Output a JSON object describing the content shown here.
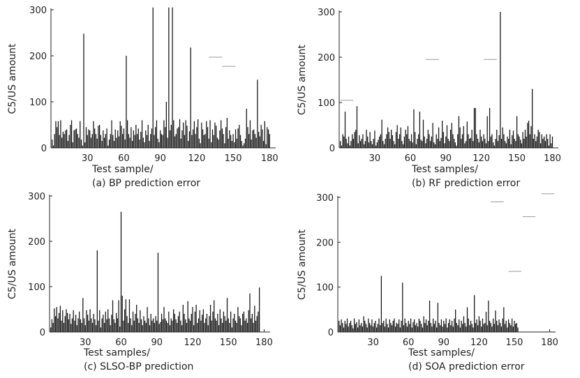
{
  "chart_data": [
    {
      "type": "bar",
      "panel": "a",
      "xlabel": "Test sample/",
      "ylabel": "C5/US amount",
      "caption": "(a) BP prediction error",
      "xlim": [
        0,
        185
      ],
      "ylim": [
        0,
        300
      ],
      "xticks": [
        30,
        60,
        90,
        120,
        150,
        180
      ],
      "yticks": [
        0,
        100,
        200,
        300
      ],
      "grid": false,
      "values": [
        18,
        5,
        30,
        58,
        45,
        58,
        28,
        60,
        22,
        35,
        30,
        38,
        40,
        15,
        28,
        50,
        60,
        12,
        38,
        40,
        42,
        30,
        22,
        58,
        18,
        5,
        248,
        12,
        45,
        28,
        40,
        38,
        22,
        30,
        58,
        42,
        30,
        20,
        48,
        50,
        28,
        15,
        38,
        22,
        30,
        42,
        5,
        18,
        30,
        60,
        28,
        15,
        40,
        22,
        38,
        25,
        58,
        48,
        30,
        42,
        18,
        200,
        60,
        30,
        22,
        45,
        15,
        38,
        28,
        50,
        30,
        42,
        18,
        35,
        60,
        22,
        12,
        38,
        28,
        50,
        15,
        30,
        42,
        305,
        28,
        45,
        60,
        20,
        12,
        38,
        30,
        28,
        60,
        45,
        100,
        22,
        305,
        38,
        50,
        305,
        60,
        25,
        30,
        42,
        45,
        62,
        20,
        38,
        55,
        28,
        60,
        48,
        15,
        36,
        218,
        28,
        40,
        58,
        30,
        45,
        62,
        20,
        10,
        55,
        40,
        28,
        30,
        58,
        45,
        20,
        60,
        12,
        40,
        28,
        55,
        48,
        22,
        18,
        38,
        60,
        42,
        30,
        10,
        45,
        65,
        20,
        38,
        28,
        15,
        30,
        12,
        40,
        20,
        42,
        50,
        28,
        15,
        5,
        10,
        20,
        85,
        45,
        30,
        60,
        18,
        38,
        40,
        30,
        22,
        148,
        35,
        25,
        50,
        40,
        15,
        58,
        8,
        45,
        40,
        30
      ],
      "annotations": [
        {
          "type": "dash",
          "x": [
            130,
            141
          ],
          "y": 197
        },
        {
          "type": "dash",
          "x": [
            141,
            152
          ],
          "y": 177
        }
      ]
    },
    {
      "type": "bar",
      "panel": "b",
      "xlabel": "Test samples/",
      "ylabel": "C5/US amount",
      "caption": "(b) RF prediction error",
      "xlim": [
        0,
        185
      ],
      "ylim": [
        0,
        300
      ],
      "xticks": [
        30,
        60,
        90,
        120,
        150,
        180
      ],
      "yticks": [
        0,
        100,
        200,
        300
      ],
      "grid": false,
      "values": [
        15,
        5,
        30,
        25,
        80,
        20,
        10,
        25,
        5,
        15,
        30,
        20,
        35,
        40,
        92,
        10,
        28,
        15,
        20,
        30,
        8,
        15,
        40,
        25,
        12,
        35,
        15,
        8,
        20,
        38,
        5,
        12,
        18,
        25,
        30,
        62,
        15,
        8,
        20,
        30,
        45,
        35,
        20,
        40,
        28,
        15,
        8,
        35,
        50,
        20,
        30,
        45,
        15,
        8,
        25,
        40,
        30,
        48,
        20,
        15,
        30,
        12,
        85,
        35,
        8,
        20,
        30,
        80,
        18,
        15,
        62,
        25,
        10,
        20,
        40,
        30,
        15,
        25,
        55,
        12,
        8,
        30,
        20,
        45,
        15,
        22,
        60,
        35,
        10,
        25,
        50,
        20,
        15,
        40,
        55,
        30,
        20,
        12,
        5,
        30,
        70,
        45,
        20,
        30,
        48,
        10,
        15,
        58,
        30,
        20,
        22,
        40,
        15,
        88,
        88,
        30,
        20,
        12,
        40,
        25,
        15,
        30,
        20,
        10,
        70,
        15,
        88,
        25,
        30,
        12,
        5,
        20,
        40,
        15,
        28,
        300,
        20,
        45,
        30,
        15,
        10,
        25,
        20,
        40,
        8,
        28,
        38,
        20,
        15,
        70,
        30,
        25,
        18,
        10,
        35,
        20,
        40,
        25,
        55,
        60,
        30,
        48,
        130,
        20,
        30,
        15,
        25,
        40,
        35,
        10,
        30,
        20,
        25,
        15,
        30,
        20,
        5,
        30,
        10,
        25
      ],
      "annotations": [
        {
          "type": "dash",
          "x": [
            1,
            12
          ],
          "y": 105
        },
        {
          "type": "dash",
          "x": [
            73,
            84
          ],
          "y": 195
        },
        {
          "type": "dash",
          "x": [
            122,
            133
          ],
          "y": 195
        }
      ]
    },
    {
      "type": "bar",
      "panel": "c",
      "xlabel": "Test samples/",
      "ylabel": "C5/US amount",
      "caption": "(c) SLSO-BP prediction",
      "xlim": [
        0,
        185
      ],
      "ylim": [
        0,
        300
      ],
      "xticks": [
        30,
        60,
        90,
        120,
        150,
        180
      ],
      "yticks": [
        0,
        100,
        200,
        300
      ],
      "grid": false,
      "values": [
        10,
        28,
        20,
        52,
        35,
        55,
        30,
        42,
        58,
        25,
        48,
        20,
        35,
        50,
        42,
        28,
        40,
        18,
        30,
        48,
        25,
        38,
        15,
        30,
        45,
        28,
        20,
        75,
        30,
        15,
        48,
        38,
        25,
        50,
        30,
        20,
        40,
        28,
        15,
        180,
        25,
        48,
        10,
        30,
        38,
        20,
        45,
        28,
        50,
        30,
        15,
        38,
        70,
        28,
        20,
        42,
        30,
        70,
        12,
        265,
        80,
        25,
        50,
        72,
        35,
        20,
        72,
        30,
        15,
        45,
        25,
        40,
        60,
        30,
        20,
        48,
        28,
        15,
        35,
        25,
        20,
        55,
        30,
        15,
        40,
        25,
        30,
        20,
        35,
        25,
        175,
        18,
        22,
        40,
        28,
        55,
        30,
        25,
        20,
        45,
        15,
        30,
        25,
        50,
        40,
        28,
        20,
        35,
        45,
        25,
        15,
        60,
        40,
        28,
        20,
        68,
        30,
        25,
        40,
        55,
        15,
        45,
        60,
        20,
        30,
        48,
        25,
        38,
        50,
        20,
        30,
        40,
        15,
        35,
        60,
        25,
        45,
        70,
        30,
        25,
        40,
        15,
        50,
        30,
        20,
        45,
        35,
        25,
        75,
        30,
        20,
        45,
        10,
        30,
        40,
        25,
        20,
        55,
        35,
        30,
        15,
        40,
        45,
        25,
        30,
        20,
        48,
        85,
        30,
        40,
        20,
        58,
        25,
        35,
        45,
        98
      ]
    },
    {
      "type": "bar",
      "panel": "d",
      "xlabel": "Test samples/",
      "ylabel": "C5/US amount",
      "caption": "(d) SOA prediction error",
      "xlim": [
        0,
        185
      ],
      "ylim": [
        0,
        300
      ],
      "xticks": [
        30,
        60,
        90,
        120,
        150,
        180
      ],
      "yticks": [
        0,
        100,
        200,
        300
      ],
      "grid": false,
      "values": [
        25,
        15,
        28,
        20,
        10,
        25,
        18,
        30,
        12,
        20,
        25,
        15,
        8,
        30,
        18,
        22,
        10,
        28,
        15,
        20,
        12,
        35,
        25,
        18,
        10,
        30,
        20,
        15,
        28,
        12,
        20,
        25,
        10,
        18,
        30,
        15,
        125,
        20,
        25,
        12,
        30,
        18,
        10,
        28,
        20,
        15,
        25,
        30,
        12,
        20,
        18,
        28,
        10,
        25,
        110,
        15,
        30,
        20,
        12,
        25,
        18,
        30,
        10,
        22,
        28,
        15,
        20,
        12,
        30,
        25,
        18,
        10,
        35,
        20,
        28,
        15,
        25,
        70,
        20,
        12,
        30,
        18,
        25,
        10,
        65,
        20,
        15,
        28,
        12,
        25,
        18,
        30,
        10,
        20,
        28,
        15,
        25,
        12,
        30,
        50,
        20,
        15,
        28,
        10,
        25,
        18,
        35,
        20,
        12,
        55,
        30,
        15,
        25,
        18,
        10,
        82,
        20,
        28,
        15,
        35,
        25,
        12,
        30,
        18,
        20,
        45,
        15,
        70,
        25,
        20,
        12,
        30,
        18,
        48,
        25,
        15,
        28,
        20,
        12,
        30,
        55,
        18,
        25,
        10,
        28,
        20,
        15,
        30,
        12,
        25,
        18,
        20,
        10
      ],
      "annotations": [
        {
          "type": "dash",
          "x": [
            130,
            141
          ],
          "y": 290
        },
        {
          "type": "dash",
          "x": [
            145,
            156
          ],
          "y": 135
        },
        {
          "type": "dash",
          "x": [
            157,
            168
          ],
          "y": 257
        },
        {
          "type": "dash",
          "x": [
            173,
            184
          ],
          "y": 308
        }
      ]
    }
  ]
}
